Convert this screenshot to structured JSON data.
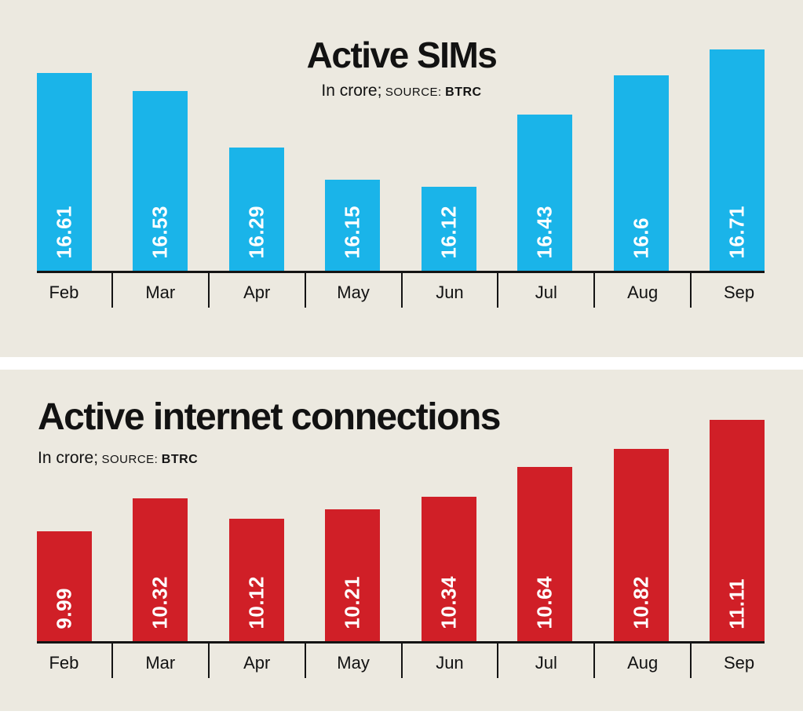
{
  "page": {
    "background": "#ece9e0",
    "divider_color": "#ffffff",
    "text_color": "#121212"
  },
  "chart_data": [
    {
      "type": "bar",
      "title": "Active SIMs",
      "subtitle": "In crore; SOURCE: BTRC",
      "unit_label": "In crore;",
      "source_label": "SOURCE:",
      "source_value": "BTRC",
      "title_align": "center",
      "categories": [
        "Feb",
        "Mar",
        "Apr",
        "May",
        "Jun",
        "Jul",
        "Aug",
        "Sep"
      ],
      "values": [
        16.61,
        16.53,
        16.29,
        16.15,
        16.12,
        16.43,
        16.6,
        16.71
      ],
      "value_labels": [
        "16.61",
        "16.53",
        "16.29",
        "16.15",
        "16.12",
        "16.43",
        "16.6",
        "16.71"
      ],
      "bar_color": "#1ab4e9",
      "value_label_color": "#ffffff",
      "xlabel": "",
      "ylabel": "",
      "ylim": [
        15.76,
        16.71
      ],
      "grid": false,
      "legend": false
    },
    {
      "type": "bar",
      "title": "Active internet connections",
      "subtitle": "In crore; SOURCE: BTRC",
      "unit_label": "In crore;",
      "source_label": "SOURCE:",
      "source_value": "BTRC",
      "title_align": "left",
      "categories": [
        "Feb",
        "Mar",
        "Apr",
        "May",
        "Jun",
        "Jul",
        "Aug",
        "Sep"
      ],
      "values": [
        9.99,
        10.32,
        10.12,
        10.21,
        10.34,
        10.64,
        10.82,
        11.11
      ],
      "value_labels": [
        "9.99",
        "10.32",
        "10.12",
        "10.21",
        "10.34",
        "10.64",
        "10.82",
        "11.11"
      ],
      "bar_color": "#d01f27",
      "value_label_color": "#ffffff",
      "xlabel": "",
      "ylabel": "",
      "ylim": [
        8.89,
        11.11
      ],
      "grid": false,
      "legend": false
    }
  ]
}
